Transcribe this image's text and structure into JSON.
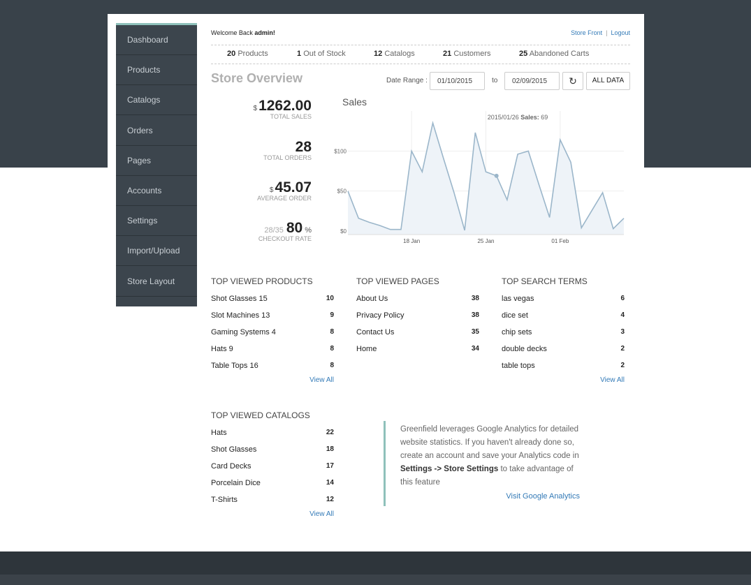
{
  "sidebar": {
    "items": [
      "Dashboard",
      "Products",
      "Catalogs",
      "Orders",
      "Pages",
      "Accounts",
      "Settings",
      "Import/Upload",
      "Store Layout"
    ]
  },
  "header": {
    "welcome": "Welcome Back",
    "user": "admin!",
    "links": [
      "Store Front",
      "Logout"
    ],
    "separator": "|"
  },
  "stats": [
    {
      "count": 20,
      "label": "Products"
    },
    {
      "count": 1,
      "label": "Out of Stock"
    },
    {
      "count": 12,
      "label": "Catalogs"
    },
    {
      "count": 21,
      "label": "Customers"
    },
    {
      "count": 25,
      "label": "Abandoned Carts"
    }
  ],
  "overview": {
    "title": "Store Overview",
    "date_range_label": "Date Range :",
    "from": "01/10/2015",
    "to_label": "to",
    "to": "02/09/2015",
    "button": "ALL DATA"
  },
  "kpis": [
    {
      "prefix": "$",
      "value": "1262.00",
      "label": "TOTAL SALES"
    },
    {
      "value": 28,
      "label": "TOTAL ORDERS"
    },
    {
      "prefix": "$",
      "value": "45.07",
      "label": "AVERAGE ORDER"
    },
    {
      "ratio": "28/35",
      "value": 80,
      "suffix": "%",
      "label": "CHECKOUT RATE"
    }
  ],
  "chart_data": {
    "type": "line",
    "title": "Sales",
    "categories": [
      null,
      null,
      null,
      null,
      null,
      null,
      "18 Jan",
      null,
      null,
      null,
      null,
      null,
      null,
      "25 Jan",
      null,
      null,
      null,
      null,
      null,
      null,
      "01 Feb",
      null,
      null,
      null,
      null,
      null,
      null
    ],
    "series": [
      {
        "name": "Sales",
        "color": "#9bb6ca",
        "values": [
          50,
          16,
          11,
          7,
          2,
          2,
          100,
          74,
          135,
          91,
          48,
          1,
          123,
          74,
          69,
          39,
          96,
          100,
          58,
          17,
          114,
          86,
          4,
          26,
          48,
          3,
          16
        ]
      }
    ],
    "ylim": [
      0,
      150
    ],
    "yticks": [
      {
        "value": 0,
        "label": "$0"
      },
      {
        "value": 50,
        "label": "$50"
      },
      {
        "value": 100,
        "label": "$100"
      }
    ],
    "grid": true,
    "tooltip": {
      "date": "2015/01/26",
      "label": "Sales:"
    },
    "hover_index": 14
  },
  "tables": [
    {
      "title": "TOP VIEWED PRODUCTS",
      "rows": [
        [
          "Shot Glasses 15",
          10
        ],
        [
          "Slot Machines 13",
          9
        ],
        [
          "Gaming Systems 4",
          8
        ],
        [
          "Hats 9",
          8
        ],
        [
          "Table Tops 16",
          8
        ]
      ],
      "link": "View All"
    },
    {
      "title": "TOP VIEWED PAGES",
      "rows": [
        [
          "About Us",
          38
        ],
        [
          "Privacy Policy",
          38
        ],
        [
          "Contact Us",
          35
        ],
        [
          "Home",
          34
        ]
      ]
    },
    {
      "title": "TOP SEARCH TERMS",
      "rows": [
        [
          "las vegas",
          6
        ],
        [
          "dice set",
          4
        ],
        [
          "chip sets",
          3
        ],
        [
          "double decks",
          2
        ],
        [
          "table tops",
          2
        ]
      ],
      "link": "View All"
    },
    {
      "title": "TOP VIEWED CATALOGS",
      "rows": [
        [
          "Hats",
          22
        ],
        [
          "Shot Glasses",
          18
        ],
        [
          "Card Decks",
          17
        ],
        [
          "Porcelain Dice",
          14
        ],
        [
          "T-Shirts",
          12
        ]
      ],
      "link": "View All"
    }
  ],
  "info": {
    "lines": [
      [
        {
          "text": "Greenfield leverages Google Analytics for detailed"
        }
      ],
      [
        {
          "text": "website statistics. If you haven't already done so,"
        }
      ],
      [
        {
          "text": "create an account and save your Analytics code in"
        }
      ],
      [
        {
          "text": "Settings -> Store Settings",
          "bold": true
        },
        {
          "text": " to take advantage of"
        }
      ],
      [
        {
          "text": "this feature"
        }
      ]
    ],
    "link": "Visit Google Analytics"
  }
}
